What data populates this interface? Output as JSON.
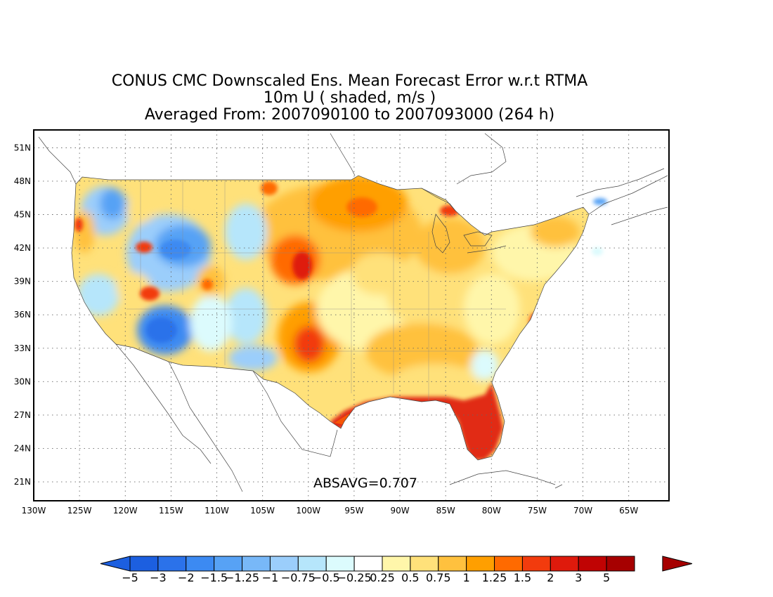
{
  "title": {
    "line1": "CONUS CMC Downscaled Ens. Mean Forecast Error w.r.t RTMA",
    "line2": "10m U ( shaded, m/s )",
    "line3": "Averaged From: 2007090100 to 2007093000 (264 h)"
  },
  "annotation": "ABSAVG=0.707",
  "axes": {
    "lat_labels": [
      "51N",
      "48N",
      "45N",
      "42N",
      "39N",
      "36N",
      "33N",
      "30N",
      "27N",
      "24N",
      "21N"
    ],
    "lat_values": [
      51,
      48,
      45,
      42,
      39,
      36,
      33,
      30,
      27,
      24,
      21
    ],
    "lon_labels": [
      "130W",
      "125W",
      "120W",
      "115W",
      "110W",
      "105W",
      "100W",
      "95W",
      "90W",
      "85W",
      "80W",
      "75W",
      "70W",
      "65W"
    ],
    "lon_values": [
      -130,
      -125,
      -120,
      -115,
      -110,
      -105,
      -100,
      -95,
      -90,
      -85,
      -80,
      -75,
      -70,
      -65
    ],
    "lat_range": [
      19.3,
      52.6
    ],
    "lon_range": [
      -130,
      -60.6
    ],
    "grid": "dotted"
  },
  "colorbar": {
    "units": "m/s",
    "labels": [
      "-5",
      "-3",
      "-2",
      "-1.5",
      "-1.25",
      "-1",
      "-0.75",
      "-0.5",
      "-0.25",
      "0.25",
      "0.5",
      "0.75",
      "1",
      "1.25",
      "1.5",
      "2",
      "3",
      "5"
    ],
    "colors": [
      "#1c5fe0",
      "#2b72ea",
      "#3c8af2",
      "#57a2f5",
      "#78b8f8",
      "#9bcefb",
      "#b6e6fb",
      "#dcfbfd",
      "#ffffff",
      "#fff6aa",
      "#ffe17a",
      "#ffc13e",
      "#ff9f00",
      "#ff6a00",
      "#f23b0d",
      "#df1a0c",
      "#c00303",
      "#a60000"
    ],
    "low_extend_color": "#1c5fe0",
    "high_extend_color": "#a60000"
  },
  "map_features": [
    "coastlines",
    "state-boundaries",
    "country-boundaries"
  ],
  "shaded_regions": [
    {
      "region": "intermountain-west",
      "lon": -114,
      "lat": 37,
      "value": -1.5
    },
    {
      "region": "great-basin",
      "lon": -111,
      "lat": 42,
      "value": -1.25
    },
    {
      "region": "northern-rockies",
      "lon": -117,
      "lat": 46,
      "value": -0.75
    },
    {
      "region": "arizona",
      "lon": -110,
      "lat": 33,
      "value": -0.75
    },
    {
      "region": "northern-plains",
      "lon": -95,
      "lat": 47,
      "value": 1.25
    },
    {
      "region": "nebraska",
      "lon": -99,
      "lat": 42,
      "value": 1.5
    },
    {
      "region": "oklahoma-texas",
      "lon": -98,
      "lat": 34,
      "value": 1.5
    },
    {
      "region": "central",
      "lon": -90,
      "lat": 38,
      "value": 0.5
    },
    {
      "region": "great-lakes",
      "lon": -85,
      "lat": 44,
      "value": 1
    },
    {
      "region": "northeast",
      "lon": -75,
      "lat": 42,
      "value": 0.5
    },
    {
      "region": "southeast",
      "lon": -84,
      "lat": 33,
      "value": 0.75
    },
    {
      "region": "gulf-coast",
      "lon": -90,
      "lat": 29,
      "value": 2
    },
    {
      "region": "florida-peninsula",
      "lon": -81.5,
      "lat": 27.5,
      "value": 2
    },
    {
      "region": "texas-coast",
      "lon": -96,
      "lat": 28,
      "value": 2
    }
  ]
}
